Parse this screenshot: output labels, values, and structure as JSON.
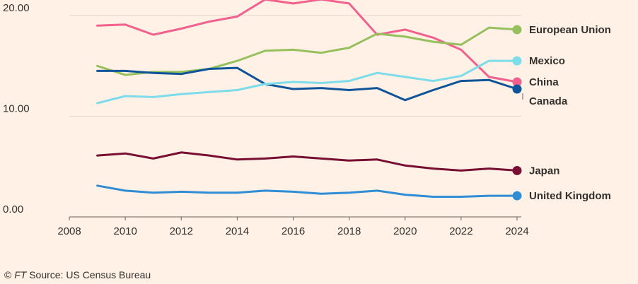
{
  "chart_data": {
    "type": "line",
    "title": "",
    "xlabel": "",
    "ylabel": "",
    "xlim": [
      2008,
      2024
    ],
    "ylim": [
      0,
      21.5
    ],
    "xticks": [
      2008,
      2010,
      2012,
      2014,
      2016,
      2018,
      2020,
      2022,
      2024
    ],
    "yticks": [
      0,
      10,
      20
    ],
    "ytick_labels": [
      "0.00",
      "10.00",
      "20.00"
    ],
    "grid": "horizontal",
    "legend": "direct labels at right end of lines",
    "x": [
      2009,
      2010,
      2011,
      2012,
      2013,
      2014,
      2015,
      2016,
      2017,
      2018,
      2019,
      2020,
      2021,
      2022,
      2023,
      2024
    ],
    "series": [
      {
        "name": "China",
        "color": "#F2608E",
        "values": [
          19.0,
          19.1,
          18.1,
          18.7,
          19.4,
          19.9,
          21.6,
          21.2,
          21.6,
          21.2,
          18.1,
          18.6,
          17.8,
          16.6,
          13.9,
          13.4
        ]
      },
      {
        "name": "European Union",
        "color": "#96C05E",
        "values": [
          15.0,
          14.1,
          14.4,
          14.4,
          14.7,
          15.5,
          16.5,
          16.6,
          16.3,
          16.8,
          18.2,
          17.9,
          17.4,
          17.1,
          18.8,
          18.6
        ]
      },
      {
        "name": "Canada",
        "color": "#0F5499",
        "values": [
          14.5,
          14.5,
          14.3,
          14.2,
          14.7,
          14.8,
          13.2,
          12.7,
          12.8,
          12.6,
          12.8,
          11.6,
          12.6,
          13.5,
          13.6,
          12.7
        ]
      },
      {
        "name": "Mexico",
        "color": "#7DDCEA",
        "values": [
          11.3,
          12.0,
          11.9,
          12.2,
          12.4,
          12.6,
          13.2,
          13.4,
          13.3,
          13.5,
          14.3,
          13.9,
          13.5,
          14.0,
          15.5,
          15.5
        ]
      },
      {
        "name": "Japan",
        "color": "#790E33",
        "values": [
          6.1,
          6.3,
          5.8,
          6.4,
          6.1,
          5.7,
          5.8,
          6.0,
          5.8,
          5.6,
          5.7,
          5.1,
          4.8,
          4.6,
          4.8,
          4.6
        ]
      },
      {
        "name": "United Kingdom",
        "color": "#2E8DD4",
        "values": [
          3.1,
          2.6,
          2.4,
          2.5,
          2.4,
          2.4,
          2.6,
          2.5,
          2.3,
          2.4,
          2.6,
          2.2,
          2.0,
          2.0,
          2.1,
          2.1
        ]
      }
    ]
  },
  "source": {
    "prefix": "© ",
    "ft": "FT",
    "text": " Source: US Census Bureau"
  },
  "colors": {
    "background": "#FFF1E5",
    "gridline": "#E0D6CC",
    "axis": "#66605C",
    "text": "#33302E"
  }
}
